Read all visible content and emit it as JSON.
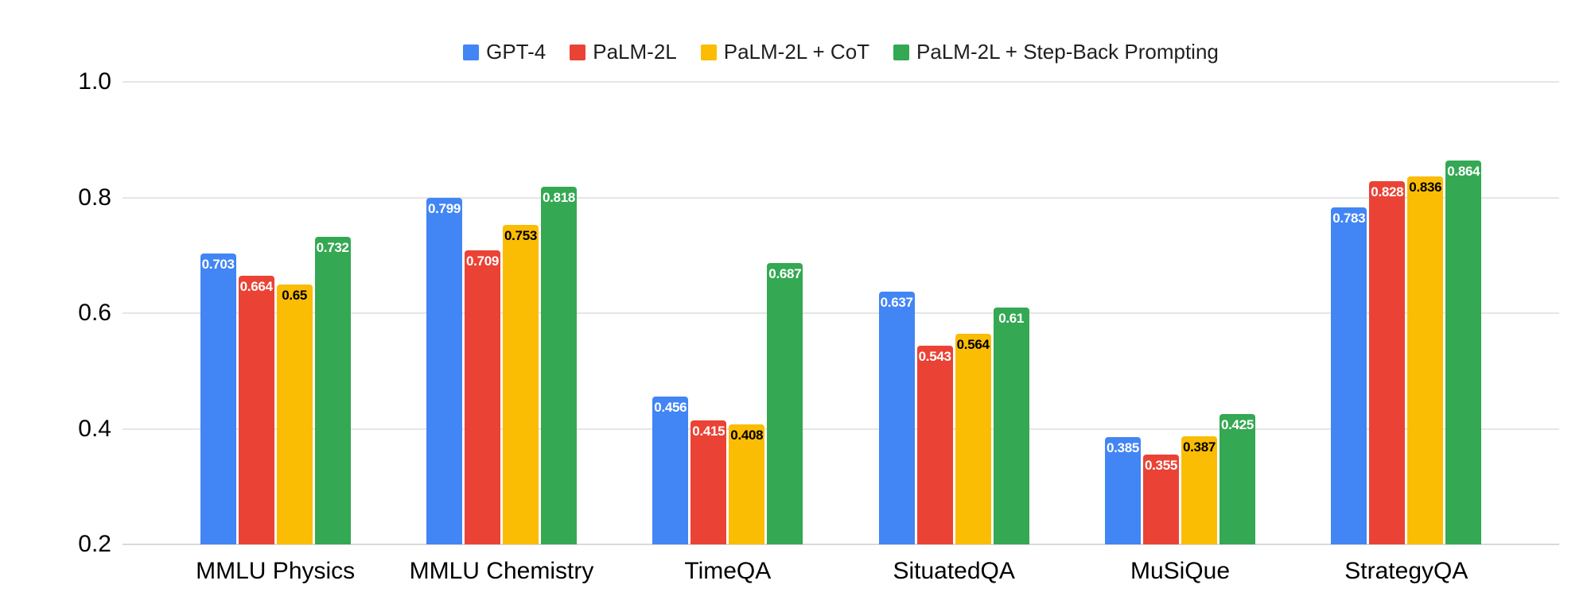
{
  "chart_data": {
    "type": "bar",
    "title": "",
    "categories": [
      "MMLU Physics",
      "MMLU Chemistry",
      "TimeQA",
      "SituatedQA",
      "MuSiQue",
      "StrategyQA"
    ],
    "series": [
      {
        "name": "GPT-4",
        "color": "#4285F4",
        "label_color": "#ffffff",
        "values": [
          0.703,
          0.799,
          0.456,
          0.637,
          0.385,
          0.783
        ],
        "labels": [
          "0.703",
          "0.799",
          "0.456",
          "0.637",
          "0.385",
          "0.783"
        ]
      },
      {
        "name": "PaLM-2L",
        "color": "#EA4335",
        "label_color": "#ffffff",
        "values": [
          0.664,
          0.709,
          0.415,
          0.543,
          0.355,
          0.828
        ],
        "labels": [
          "0.664",
          "0.709",
          "0.415",
          "0.543",
          "0.355",
          "0.828"
        ]
      },
      {
        "name": "PaLM-2L + CoT",
        "color": "#FBBC04",
        "label_color": "#000000",
        "values": [
          0.65,
          0.753,
          0.408,
          0.564,
          0.387,
          0.836
        ],
        "labels": [
          "0.65",
          "0.753",
          "0.408",
          "0.564",
          "0.387",
          "0.836"
        ]
      },
      {
        "name": "PaLM-2L + Step-Back Prompting",
        "color": "#34A853",
        "label_color": "#ffffff",
        "values": [
          0.732,
          0.818,
          0.687,
          0.61,
          0.425,
          0.864
        ],
        "labels": [
          "0.732",
          "0.818",
          "0.687",
          "0.61",
          "0.425",
          "0.864"
        ]
      }
    ],
    "y_axis": {
      "min": 0.2,
      "max": 1.0,
      "tick_values": [
        1.0,
        0.8,
        0.6,
        0.4,
        0.2
      ],
      "ticks": [
        "1.0",
        "0.8",
        "0.6",
        "0.4",
        "0.2"
      ]
    },
    "grid": true,
    "legend_position": "top",
    "colors": {
      "background": "#ffffff",
      "gridline": "#e6e6e6",
      "baseline": "#d9d9d9",
      "axis_text": "#000000",
      "legend_text": "#1f1f1f"
    }
  }
}
